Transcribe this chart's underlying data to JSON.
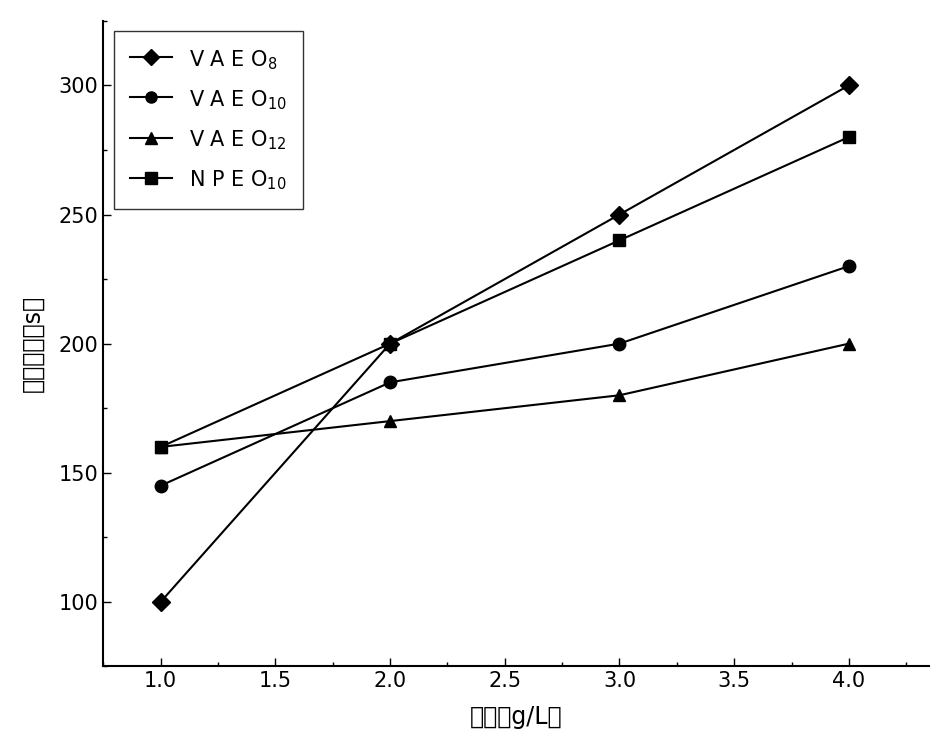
{
  "x": [
    1.0,
    2.0,
    3.0,
    4.0
  ],
  "series": [
    {
      "label_main": "V A E O",
      "label_sub": "8",
      "y": [
        100,
        200,
        250,
        300
      ],
      "marker": "D",
      "markersize": 9
    },
    {
      "label_main": "V A E O",
      "label_sub": "10",
      "y": [
        145,
        185,
        200,
        230
      ],
      "marker": "o",
      "markersize": 9
    },
    {
      "label_main": "V A E O",
      "label_sub": "12",
      "y": [
        160,
        170,
        180,
        200
      ],
      "marker": "^",
      "markersize": 9
    },
    {
      "label_main": "N P E O",
      "label_sub": "10",
      "y": [
        160,
        200,
        240,
        280
      ],
      "marker": "s",
      "markersize": 9
    }
  ],
  "line_color": "#000000",
  "xlabel": "浓度（g/L）",
  "ylabel": "乔化性能（s）",
  "xlim": [
    0.75,
    4.35
  ],
  "ylim": [
    75,
    325
  ],
  "xticks": [
    1.0,
    1.5,
    2.0,
    2.5,
    3.0,
    3.5,
    4.0
  ],
  "yticks": [
    100,
    150,
    200,
    250,
    300
  ],
  "background_color": "#ffffff",
  "legend_fontsize": 15,
  "axis_fontsize": 17,
  "tick_fontsize": 15,
  "linewidth": 1.5
}
